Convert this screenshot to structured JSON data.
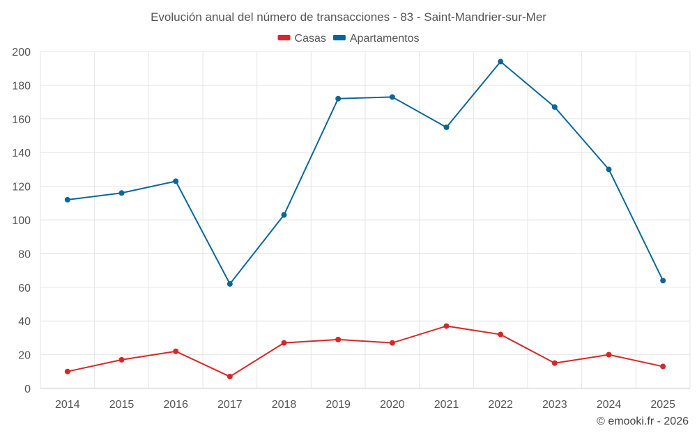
{
  "chart_data": {
    "type": "line",
    "title": "Evolución anual del número de transacciones - 83 - Saint-Mandrier-sur-Mer",
    "categories": [
      "2014",
      "2015",
      "2016",
      "2017",
      "2018",
      "2019",
      "2020",
      "2021",
      "2022",
      "2023",
      "2024",
      "2025"
    ],
    "series": [
      {
        "name": "Casas",
        "color": "#d62728",
        "values": [
          10,
          17,
          22,
          7,
          27,
          29,
          27,
          37,
          32,
          15,
          20,
          13
        ]
      },
      {
        "name": "Apartamentos",
        "color": "#0a6699",
        "values": [
          112,
          116,
          123,
          62,
          103,
          172,
          173,
          155,
          194,
          167,
          130,
          64
        ]
      }
    ],
    "ylim": [
      0,
      200
    ],
    "yticks": [
      0,
      20,
      40,
      60,
      80,
      100,
      120,
      140,
      160,
      180,
      200
    ],
    "grid": true,
    "legend": "top-center",
    "xlabel": "",
    "ylabel": ""
  },
  "footer": {
    "credit": "© emooki.fr - 2026"
  }
}
